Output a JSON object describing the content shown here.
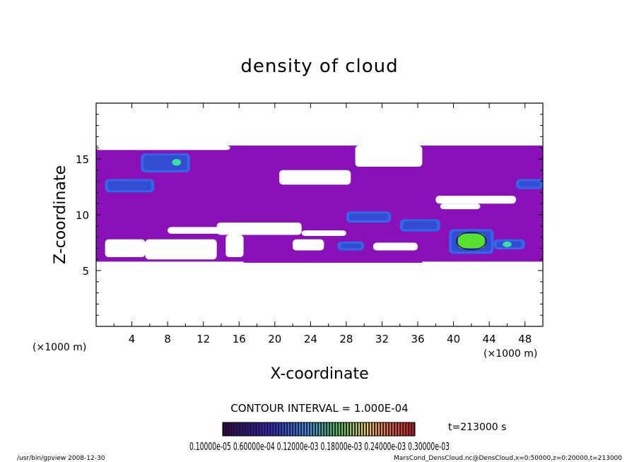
{
  "chart_data": {
    "type": "heatmap",
    "title": "density of cloud",
    "xlabel": "X-coordinate",
    "ylabel": "Z-coordinate",
    "x_unit": "(×1000 m)",
    "y_unit": "(×1000 m)",
    "xlim": [
      0,
      50
    ],
    "ylim": [
      0,
      20
    ],
    "x_ticks": [
      4,
      8,
      12,
      16,
      20,
      24,
      28,
      32,
      36,
      40,
      44,
      48
    ],
    "y_ticks": [
      5,
      10,
      15
    ],
    "contour_interval": "CONTOUR INTERVAL = 1.000E-04",
    "time_label": "t=213000 s",
    "colorbar_labels": "0.10000e-05 0.60000e-04 0.12000e-03 0.18000e-03 0.24000e-03 0.30000e-03",
    "colorbar_range": [
      1e-06,
      0.0003
    ],
    "footer_left": "/usr/bin/gpview   2008-12-30",
    "footer_right": "MarsCond_DensCloud.nc@DensCloud,x=0:50000,z=0:20000,t=213000",
    "colors": {
      "background_field": "#8a10b8",
      "low": "#3a1aa8",
      "mid": "#1e78f0",
      "high": "#36e0a0",
      "peak": "#58e030"
    },
    "cloud_regions": [
      {
        "x0": 0,
        "x1": 50,
        "z0": 8.0,
        "z1": 16.2,
        "level": "background"
      },
      {
        "x0": 0,
        "x1": 50,
        "z0": 5.8,
        "z1": 8.2,
        "level": "background"
      },
      {
        "x0": 16.5,
        "x1": 36.5,
        "z0": 5.7,
        "z1": 8.5,
        "level": "background"
      },
      {
        "x0": 1.0,
        "x1": 6.5,
        "z0": 12.0,
        "z1": 13.2,
        "level": "mid"
      },
      {
        "x0": 5.0,
        "x1": 10.5,
        "z0": 13.8,
        "z1": 15.5,
        "level": "mid"
      },
      {
        "x0": 8.5,
        "x1": 9.5,
        "z0": 14.4,
        "z1": 15.0,
        "level": "high"
      },
      {
        "x0": 47.0,
        "x1": 50.0,
        "z0": 12.3,
        "z1": 13.2,
        "level": "mid"
      },
      {
        "x0": 28.0,
        "x1": 33.0,
        "z0": 9.3,
        "z1": 10.3,
        "level": "mid"
      },
      {
        "x0": 34.0,
        "x1": 38.5,
        "z0": 8.5,
        "z1": 9.6,
        "level": "mid"
      },
      {
        "x0": 27.0,
        "x1": 30.0,
        "z0": 6.8,
        "z1": 7.6,
        "level": "mid"
      },
      {
        "x0": 39.5,
        "x1": 44.5,
        "z0": 6.5,
        "z1": 8.7,
        "level": "mid"
      },
      {
        "x0": 44.5,
        "x1": 48.0,
        "z0": 6.9,
        "z1": 7.8,
        "level": "mid"
      },
      {
        "x0": 40.5,
        "x1": 43.5,
        "z0": 7.0,
        "z1": 8.3,
        "level": "peak"
      },
      {
        "x0": 45.5,
        "x1": 46.5,
        "z0": 7.1,
        "z1": 7.6,
        "level": "high"
      }
    ],
    "empty_regions": [
      {
        "x0": 20.5,
        "x1": 28.5,
        "z0": 12.7,
        "z1": 14.0
      },
      {
        "x0": 29.0,
        "x1": 36.5,
        "z0": 14.3,
        "z1": 16.2
      },
      {
        "x0": 0,
        "x1": 15.0,
        "z0": 15.8,
        "z1": 16.2
      },
      {
        "x0": 38.5,
        "x1": 43.0,
        "z0": 10.5,
        "z1": 11.0
      },
      {
        "x0": 38.0,
        "x1": 47.0,
        "z0": 11.0,
        "z1": 11.7
      },
      {
        "x0": 13.5,
        "x1": 23.0,
        "z0": 8.2,
        "z1": 9.3
      },
      {
        "x0": 8.0,
        "x1": 14.5,
        "z0": 8.3,
        "z1": 8.9
      },
      {
        "x0": 23.0,
        "x1": 28.0,
        "z0": 8.1,
        "z1": 8.6
      },
      {
        "x0": 14.5,
        "x1": 16.5,
        "z0": 6.2,
        "z1": 8.2
      },
      {
        "x0": 5.5,
        "x1": 13.5,
        "z0": 6.0,
        "z1": 7.8
      },
      {
        "x0": 1.0,
        "x1": 5.5,
        "z0": 6.2,
        "z1": 7.8
      },
      {
        "x0": 22.0,
        "x1": 25.5,
        "z0": 6.8,
        "z1": 7.8
      },
      {
        "x0": 31.0,
        "x1": 36.0,
        "z0": 6.8,
        "z1": 7.5
      }
    ]
  }
}
